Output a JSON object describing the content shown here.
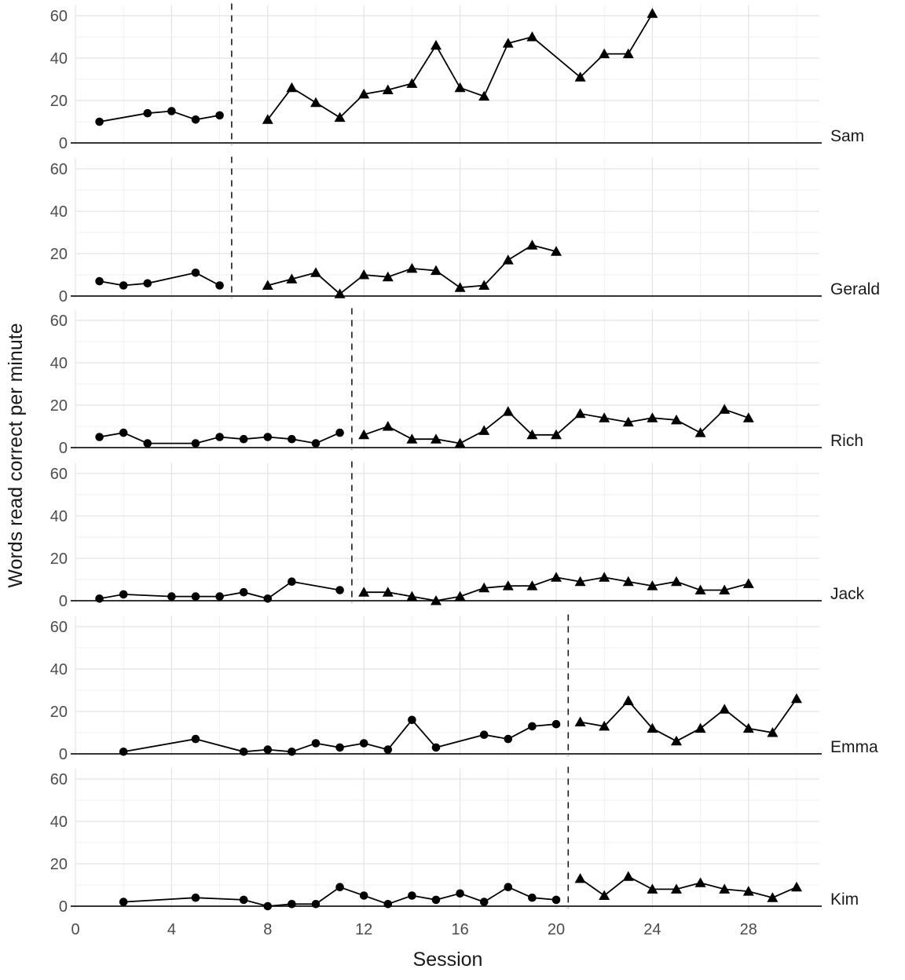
{
  "figure": {
    "x_axis_title": "Session",
    "y_axis_title": "Words read correct per minute"
  },
  "colors": {
    "series": "#000000",
    "axis_line": "#1a1a1a",
    "grid_major": "#e3e3e3",
    "grid_minor": "#efefef",
    "tick_text": "#4d4d4d",
    "background": "#ffffff"
  },
  "chart_data": {
    "type": "line",
    "layout": "six stacked single-case design panels sharing one x axis; dashed vertical line marks phase change in each panel",
    "xlabel": "Session",
    "ylabel": "Words read correct per minute",
    "x_ticks": [
      0,
      4,
      8,
      12,
      16,
      20,
      24,
      28
    ],
    "x_range": [
      0,
      31
    ],
    "y_ticks": [
      0,
      20,
      40,
      60
    ],
    "y_range": [
      0,
      65
    ],
    "grid": true,
    "legend": "none (phases distinguished by marker: baseline = filled circles, intervention = filled triangles)",
    "panels": [
      {
        "name": "Sam",
        "phase_change_x": 6.5,
        "baseline": {
          "marker": "circle",
          "points": [
            [
              1,
              10
            ],
            [
              3,
              14
            ],
            [
              4,
              15
            ],
            [
              5,
              11
            ],
            [
              6,
              13
            ]
          ]
        },
        "intervention": {
          "marker": "triangle",
          "points": [
            [
              8,
              11
            ],
            [
              9,
              26
            ],
            [
              10,
              19
            ],
            [
              11,
              12
            ],
            [
              12,
              23
            ],
            [
              13,
              25
            ],
            [
              14,
              28
            ],
            [
              15,
              46
            ],
            [
              16,
              26
            ],
            [
              17,
              22
            ],
            [
              18,
              47
            ],
            [
              19,
              50
            ],
            [
              21,
              31
            ],
            [
              22,
              42
            ],
            [
              23,
              42
            ],
            [
              24,
              61
            ]
          ]
        }
      },
      {
        "name": "Gerald",
        "phase_change_x": 6.5,
        "baseline": {
          "marker": "circle",
          "points": [
            [
              1,
              7
            ],
            [
              2,
              5
            ],
            [
              3,
              6
            ],
            [
              5,
              11
            ],
            [
              6,
              5
            ]
          ]
        },
        "intervention": {
          "marker": "triangle",
          "points": [
            [
              8,
              5
            ],
            [
              9,
              8
            ],
            [
              10,
              11
            ],
            [
              11,
              1
            ],
            [
              12,
              10
            ],
            [
              13,
              9
            ],
            [
              14,
              13
            ],
            [
              15,
              12
            ],
            [
              16,
              4
            ],
            [
              17,
              5
            ],
            [
              18,
              17
            ],
            [
              19,
              24
            ],
            [
              20,
              21
            ]
          ]
        }
      },
      {
        "name": "Rich",
        "phase_change_x": 11.5,
        "baseline": {
          "marker": "circle",
          "points": [
            [
              1,
              5
            ],
            [
              2,
              7
            ],
            [
              3,
              2
            ],
            [
              5,
              2
            ],
            [
              6,
              5
            ],
            [
              7,
              4
            ],
            [
              8,
              5
            ],
            [
              9,
              4
            ],
            [
              10,
              2
            ],
            [
              11,
              7
            ]
          ]
        },
        "intervention": {
          "marker": "triangle",
          "points": [
            [
              12,
              6
            ],
            [
              13,
              10
            ],
            [
              14,
              4
            ],
            [
              15,
              4
            ],
            [
              16,
              2
            ],
            [
              17,
              8
            ],
            [
              18,
              17
            ],
            [
              19,
              6
            ],
            [
              20,
              6
            ],
            [
              21,
              16
            ],
            [
              22,
              14
            ],
            [
              23,
              12
            ],
            [
              24,
              14
            ],
            [
              25,
              13
            ],
            [
              26,
              7
            ],
            [
              27,
              18
            ],
            [
              28,
              14
            ]
          ]
        }
      },
      {
        "name": "Jack",
        "phase_change_x": 11.5,
        "baseline": {
          "marker": "circle",
          "points": [
            [
              1,
              1
            ],
            [
              2,
              3
            ],
            [
              4,
              2
            ],
            [
              5,
              2
            ],
            [
              6,
              2
            ],
            [
              7,
              4
            ],
            [
              8,
              1
            ],
            [
              9,
              9
            ],
            [
              11,
              5
            ]
          ]
        },
        "intervention": {
          "marker": "triangle",
          "points": [
            [
              12,
              4
            ],
            [
              13,
              4
            ],
            [
              14,
              2
            ],
            [
              15,
              0
            ],
            [
              16,
              2
            ],
            [
              17,
              6
            ],
            [
              18,
              7
            ],
            [
              19,
              7
            ],
            [
              20,
              11
            ],
            [
              21,
              9
            ],
            [
              22,
              11
            ],
            [
              23,
              9
            ],
            [
              24,
              7
            ],
            [
              25,
              9
            ],
            [
              26,
              5
            ],
            [
              27,
              5
            ],
            [
              28,
              8
            ]
          ]
        }
      },
      {
        "name": "Emma",
        "phase_change_x": 20.5,
        "baseline": {
          "marker": "circle",
          "points": [
            [
              2,
              1
            ],
            [
              5,
              7
            ],
            [
              7,
              1
            ],
            [
              8,
              2
            ],
            [
              9,
              1
            ],
            [
              10,
              5
            ],
            [
              11,
              3
            ],
            [
              12,
              5
            ],
            [
              13,
              2
            ],
            [
              14,
              16
            ],
            [
              15,
              3
            ],
            [
              17,
              9
            ],
            [
              18,
              7
            ],
            [
              19,
              13
            ],
            [
              20,
              14
            ]
          ]
        },
        "intervention": {
          "marker": "triangle",
          "points": [
            [
              21,
              15
            ],
            [
              22,
              13
            ],
            [
              23,
              25
            ],
            [
              24,
              12
            ],
            [
              25,
              6
            ],
            [
              26,
              12
            ],
            [
              27,
              21
            ],
            [
              28,
              12
            ],
            [
              29,
              10
            ],
            [
              30,
              26
            ]
          ]
        }
      },
      {
        "name": "Kim",
        "phase_change_x": 20.5,
        "baseline": {
          "marker": "circle",
          "points": [
            [
              2,
              2
            ],
            [
              5,
              4
            ],
            [
              7,
              3
            ],
            [
              8,
              0
            ],
            [
              9,
              1
            ],
            [
              10,
              1
            ],
            [
              11,
              9
            ],
            [
              12,
              5
            ],
            [
              13,
              1
            ],
            [
              14,
              5
            ],
            [
              15,
              3
            ],
            [
              16,
              6
            ],
            [
              17,
              2
            ],
            [
              18,
              9
            ],
            [
              19,
              4
            ],
            [
              20,
              3
            ]
          ]
        },
        "intervention": {
          "marker": "triangle",
          "points": [
            [
              21,
              13
            ],
            [
              22,
              5
            ],
            [
              23,
              14
            ],
            [
              24,
              8
            ],
            [
              25,
              8
            ],
            [
              26,
              11
            ],
            [
              27,
              8
            ],
            [
              28,
              7
            ],
            [
              29,
              4
            ],
            [
              30,
              9
            ]
          ]
        }
      }
    ]
  }
}
